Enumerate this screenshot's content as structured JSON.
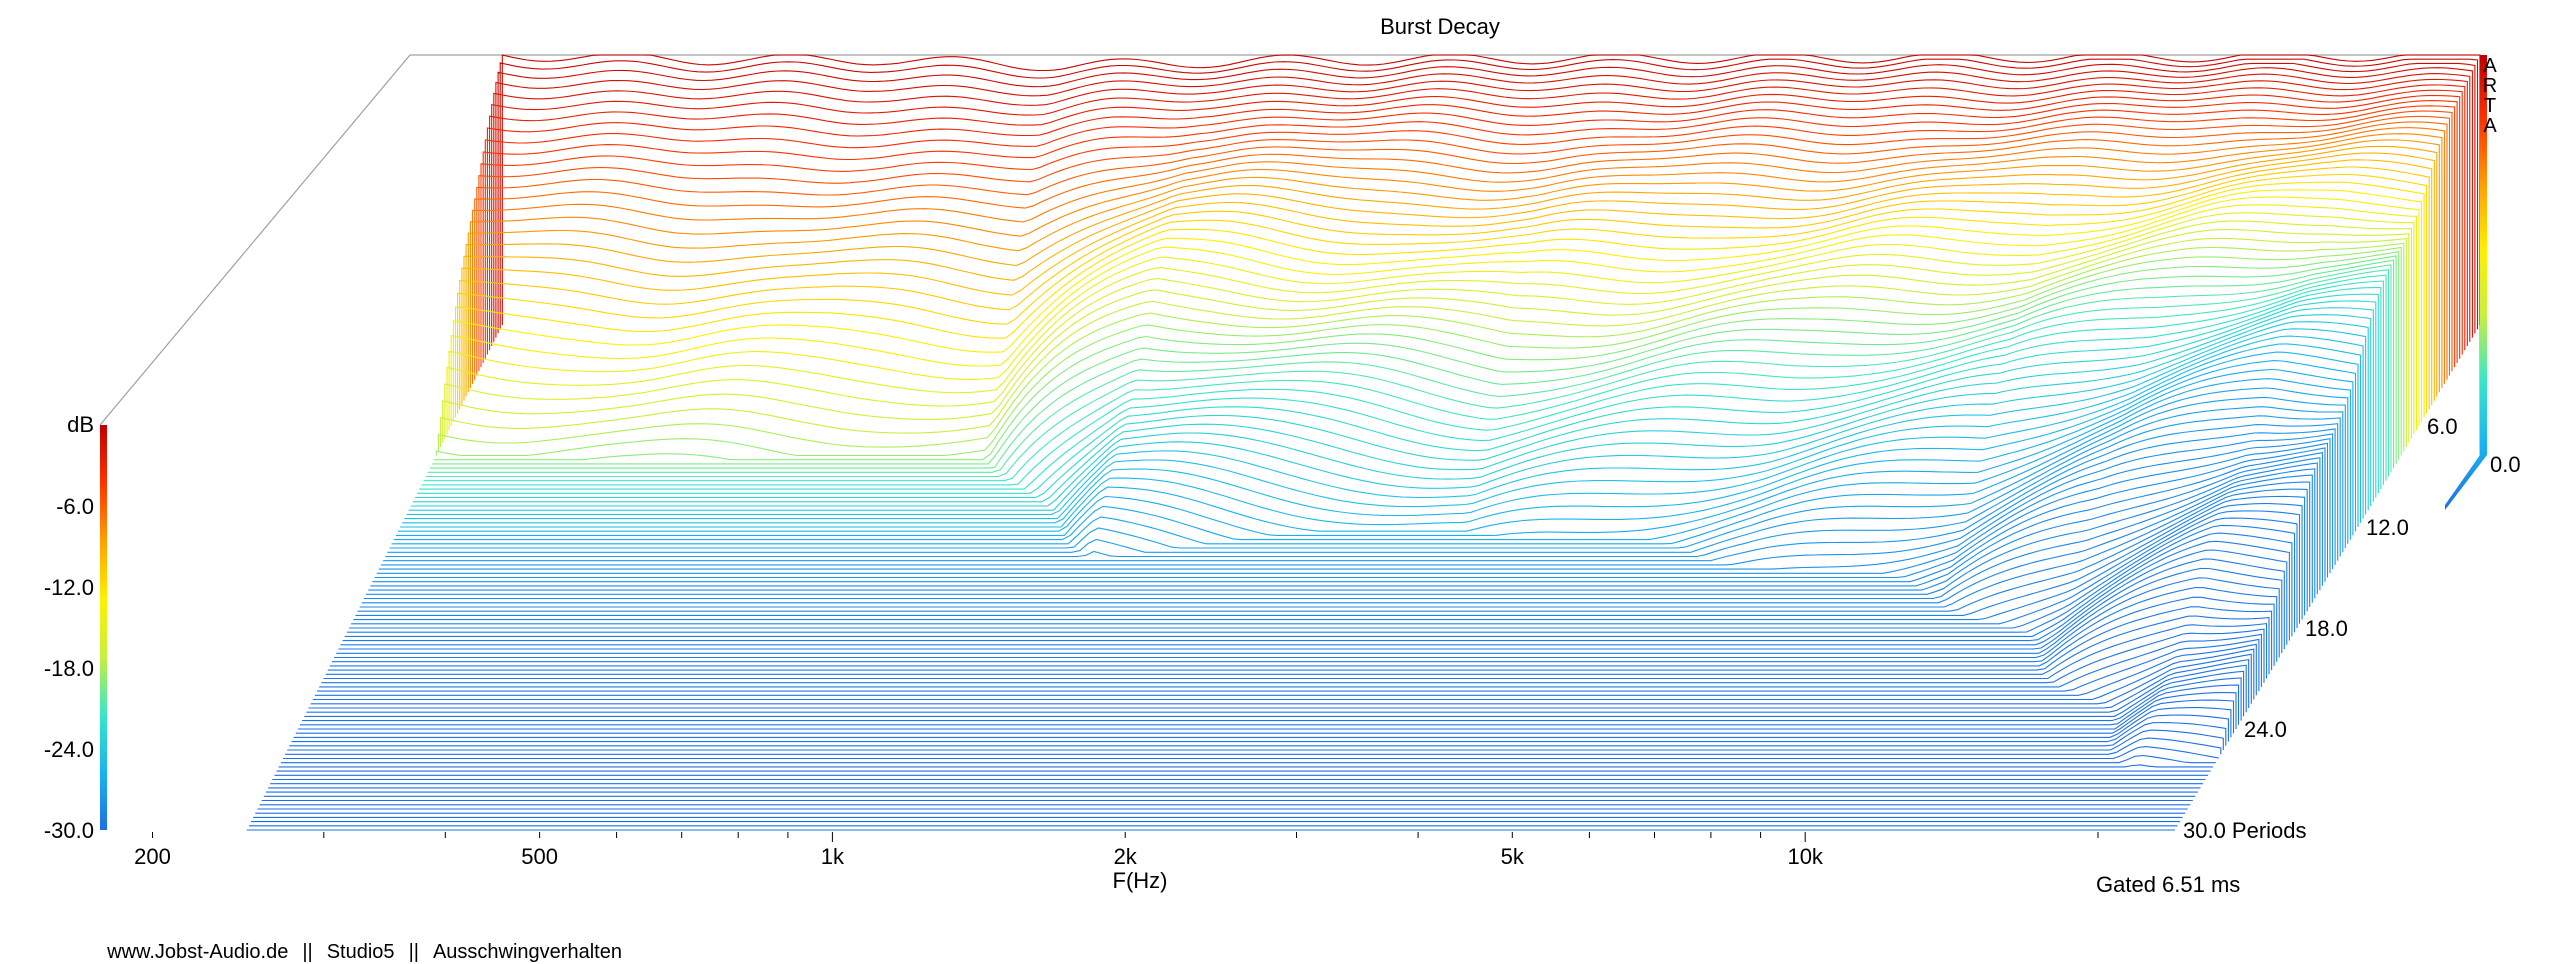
{
  "chart_data": {
    "type": "waterfall",
    "title": "Burst Decay",
    "xlabel": "F(Hz)",
    "x_scale": "log",
    "xlim": [
      180,
      24000
    ],
    "x_ticks": [
      {
        "value": 200,
        "label": "200"
      },
      {
        "value": 500,
        "label": "500"
      },
      {
        "value": 1000,
        "label": "1k"
      },
      {
        "value": 2000,
        "label": "2k"
      },
      {
        "value": 5000,
        "label": "5k"
      },
      {
        "value": 10000,
        "label": "10k"
      }
    ],
    "z_label": "dB",
    "zlim": [
      -30,
      0
    ],
    "z_ticks": [
      {
        "value": 0,
        "label": ""
      },
      {
        "value": -6,
        "label": "-6.0"
      },
      {
        "value": -12,
        "label": "-12.0"
      },
      {
        "value": -18,
        "label": "-18.0"
      },
      {
        "value": -24,
        "label": "-24.0"
      },
      {
        "value": -30,
        "label": "-30.0"
      }
    ],
    "colorbar_right_tick": "0.0",
    "y_axis": {
      "unit": "Periods",
      "ticks": [
        {
          "value": 6,
          "label": "6.0"
        },
        {
          "value": 12,
          "label": "12.0"
        },
        {
          "value": 18,
          "label": "18.0"
        },
        {
          "value": 24,
          "label": "24.0"
        },
        {
          "value": 30,
          "label": "30.0 Periods"
        }
      ]
    },
    "y_range": [
      0,
      30
    ],
    "gate_note": "Gated 6.51 ms",
    "brand": "ARTA",
    "front_response_db": [
      {
        "f": 250,
        "db": 0
      },
      {
        "f": 400,
        "db": -0.5
      },
      {
        "f": 600,
        "db": -0.5
      },
      {
        "f": 900,
        "db": -1.2
      },
      {
        "f": 1500,
        "db": -0.6
      },
      {
        "f": 2500,
        "db": -0.4
      },
      {
        "f": 5000,
        "db": -0.3
      },
      {
        "f": 10000,
        "db": -0.2
      },
      {
        "f": 18000,
        "db": -0.1
      },
      {
        "f": 24000,
        "db": 0
      }
    ],
    "decay_periods_to_floor": [
      {
        "f": 200,
        "periods": 8
      },
      {
        "f": 900,
        "periods": 8
      },
      {
        "f": 1300,
        "periods": 14
      },
      {
        "f": 3000,
        "periods": 12
      },
      {
        "f": 6000,
        "periods": 14
      },
      {
        "f": 10000,
        "periods": 16
      },
      {
        "f": 14000,
        "periods": 20
      },
      {
        "f": 20000,
        "periods": 26
      }
    ],
    "colorscale": [
      "#1e6fe6",
      "#19b4f0",
      "#39e6c8",
      "#c8f03c",
      "#fff000",
      "#ffa000",
      "#ff3200",
      "#c00000"
    ]
  },
  "footer": {
    "site": "www.Jobst-Audio.de",
    "separator": "||",
    "device": "Studio5",
    "description": "Ausschwingverhalten"
  }
}
